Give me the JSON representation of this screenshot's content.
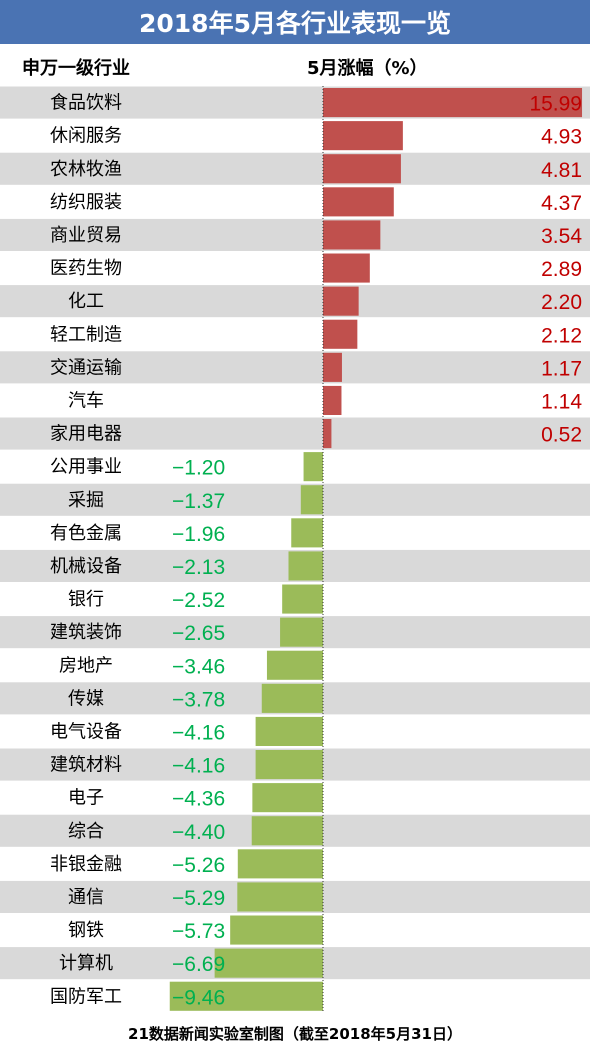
{
  "title": "2018年5月各行业表现一览",
  "header": {
    "col_industry": "申万一级行业",
    "col_change": "5月涨幅（%）"
  },
  "footer": "21数据新闻实验室制图（截至2018年5月31日）",
  "colors": {
    "title_bg": "#4a73b3",
    "stripe": "#d9d9d9",
    "positive_bar": "#c0504d",
    "negative_bar": "#9bbb59",
    "positive_text": "#c00000",
    "negative_text": "#00b050"
  },
  "chart_data": {
    "type": "bar",
    "orientation": "horizontal",
    "categories": [
      "食品饮料",
      "休闲服务",
      "农林牧渔",
      "纺织服装",
      "商业贸易",
      "医药生物",
      "化工",
      "轻工制造",
      "交通运输",
      "汽车",
      "家用电器",
      "公用事业",
      "采掘",
      "有色金属",
      "机械设备",
      "银行",
      "建筑装饰",
      "房地产",
      "传媒",
      "电气设备",
      "建筑材料",
      "电子",
      "综合",
      "非银金融",
      "通信",
      "钢铁",
      "计算机",
      "国防军工"
    ],
    "values": [
      15.99,
      4.93,
      4.81,
      4.37,
      3.54,
      2.89,
      2.2,
      2.12,
      1.17,
      1.14,
      0.52,
      -1.2,
      -1.37,
      -1.96,
      -2.13,
      -2.52,
      -2.65,
      -3.46,
      -3.78,
      -4.16,
      -4.16,
      -4.36,
      -4.4,
      -5.26,
      -5.29,
      -5.73,
      -6.69,
      -9.46
    ],
    "labels": [
      "15.99",
      "4.93",
      "4.81",
      "4.37",
      "3.54",
      "2.89",
      "2.20",
      "2.12",
      "1.17",
      "1.14",
      "0.52",
      "−1.20",
      "−1.37",
      "−1.96",
      "−2.13",
      "−2.52",
      "−2.65",
      "−3.46",
      "−3.78",
      "−4.16",
      "−4.16",
      "−4.36",
      "−4.40",
      "−5.26",
      "−5.29",
      "−5.73",
      "−6.69",
      "−9.46"
    ],
    "xlim": [
      -10,
      16
    ],
    "grid": false
  }
}
